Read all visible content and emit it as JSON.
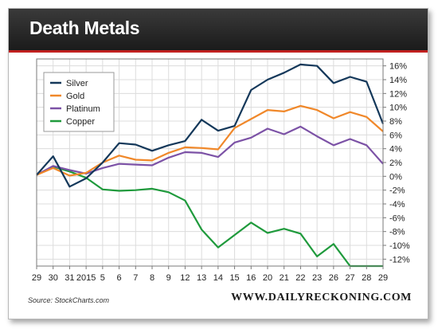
{
  "banner": {
    "title": "Death Metals"
  },
  "footer": {
    "source": "Source: StockCharts.com",
    "site": "WWW.DAILYRECKONING.COM"
  },
  "colors": {
    "Silver": "#14385a",
    "Gold": "#f0882a",
    "Platinum": "#7c52a6",
    "Copper": "#1f9a3c"
  },
  "chart_data": {
    "type": "line",
    "x": [
      "29",
      "30",
      "31",
      "2015",
      "5",
      "6",
      "7",
      "8",
      "9",
      "12",
      "13",
      "14",
      "15",
      "16",
      "20",
      "21",
      "22",
      "23",
      "26",
      "27",
      "28",
      "29"
    ],
    "ylim": [
      -13,
      17
    ],
    "yticks": [
      -12,
      -10,
      -8,
      -6,
      -4,
      -2,
      0,
      2,
      4,
      6,
      8,
      10,
      12,
      14,
      16
    ],
    "ytick_labels": [
      "-12%",
      "-10%",
      "-8%",
      "-6%",
      "-4%",
      "-2%",
      "0%",
      "2%",
      "4%",
      "6%",
      "8%",
      "10%",
      "12%",
      "14%",
      "16%"
    ],
    "grid": true,
    "y_axis_side": "right",
    "legend_position": "top-left",
    "series": [
      {
        "name": "Silver",
        "values": [
          0.2,
          2.9,
          -1.5,
          -0.3,
          2.0,
          4.8,
          4.6,
          3.7,
          4.5,
          5.1,
          8.2,
          6.6,
          7.3,
          12.5,
          14.0,
          15.0,
          16.2,
          16.0,
          13.5,
          14.4,
          13.7,
          7.6
        ]
      },
      {
        "name": "Gold",
        "values": [
          0.2,
          1.2,
          0.1,
          0.5,
          2.0,
          3.0,
          2.4,
          2.3,
          3.4,
          4.2,
          4.1,
          3.9,
          7.0,
          8.3,
          9.6,
          9.4,
          10.2,
          9.6,
          8.4,
          9.3,
          8.6,
          6.5
        ]
      },
      {
        "name": "Platinum",
        "values": [
          0.2,
          1.5,
          0.9,
          0.4,
          1.2,
          1.8,
          1.7,
          1.6,
          2.7,
          3.5,
          3.4,
          2.8,
          4.9,
          5.6,
          6.9,
          6.1,
          7.2,
          5.8,
          4.5,
          5.4,
          4.5,
          1.8
        ]
      },
      {
        "name": "Copper",
        "values": [
          0.2,
          1.4,
          0.7,
          -0.2,
          -1.9,
          -2.1,
          -2.0,
          -1.8,
          -2.3,
          -3.5,
          -7.7,
          -10.3,
          -8.5,
          -6.7,
          -8.2,
          -7.6,
          -8.3,
          -11.6,
          -9.8,
          -13.0,
          -13.0,
          -13.0
        ]
      }
    ]
  }
}
